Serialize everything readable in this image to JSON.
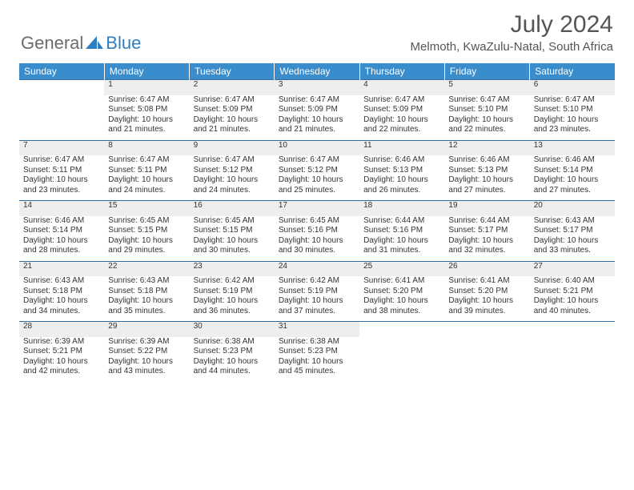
{
  "logo": {
    "text1": "General",
    "text2": "Blue",
    "logo_color": "#2d7fc1",
    "text_color": "#6c6c6c"
  },
  "title": "July 2024",
  "location": "Melmoth, KwaZulu-Natal, South Africa",
  "colors": {
    "header_bg": "#3a8dcc",
    "header_text": "#ffffff",
    "daynum_bg": "#eeeeee",
    "cell_border": "#2d6ea5",
    "body_text": "#333333",
    "title_text": "#555555"
  },
  "typography": {
    "title_fontsize": 30,
    "location_fontsize": 15,
    "header_fontsize": 12,
    "daynum_fontsize": 11,
    "cell_fontsize": 10
  },
  "days_of_week": [
    "Sunday",
    "Monday",
    "Tuesday",
    "Wednesday",
    "Thursday",
    "Friday",
    "Saturday"
  ],
  "weeks": [
    [
      null,
      {
        "n": "1",
        "sr": "6:47 AM",
        "ss": "5:08 PM",
        "dl": "10 hours and 21 minutes."
      },
      {
        "n": "2",
        "sr": "6:47 AM",
        "ss": "5:09 PM",
        "dl": "10 hours and 21 minutes."
      },
      {
        "n": "3",
        "sr": "6:47 AM",
        "ss": "5:09 PM",
        "dl": "10 hours and 21 minutes."
      },
      {
        "n": "4",
        "sr": "6:47 AM",
        "ss": "5:09 PM",
        "dl": "10 hours and 22 minutes."
      },
      {
        "n": "5",
        "sr": "6:47 AM",
        "ss": "5:10 PM",
        "dl": "10 hours and 22 minutes."
      },
      {
        "n": "6",
        "sr": "6:47 AM",
        "ss": "5:10 PM",
        "dl": "10 hours and 23 minutes."
      }
    ],
    [
      {
        "n": "7",
        "sr": "6:47 AM",
        "ss": "5:11 PM",
        "dl": "10 hours and 23 minutes."
      },
      {
        "n": "8",
        "sr": "6:47 AM",
        "ss": "5:11 PM",
        "dl": "10 hours and 24 minutes."
      },
      {
        "n": "9",
        "sr": "6:47 AM",
        "ss": "5:12 PM",
        "dl": "10 hours and 24 minutes."
      },
      {
        "n": "10",
        "sr": "6:47 AM",
        "ss": "5:12 PM",
        "dl": "10 hours and 25 minutes."
      },
      {
        "n": "11",
        "sr": "6:46 AM",
        "ss": "5:13 PM",
        "dl": "10 hours and 26 minutes."
      },
      {
        "n": "12",
        "sr": "6:46 AM",
        "ss": "5:13 PM",
        "dl": "10 hours and 27 minutes."
      },
      {
        "n": "13",
        "sr": "6:46 AM",
        "ss": "5:14 PM",
        "dl": "10 hours and 27 minutes."
      }
    ],
    [
      {
        "n": "14",
        "sr": "6:46 AM",
        "ss": "5:14 PM",
        "dl": "10 hours and 28 minutes."
      },
      {
        "n": "15",
        "sr": "6:45 AM",
        "ss": "5:15 PM",
        "dl": "10 hours and 29 minutes."
      },
      {
        "n": "16",
        "sr": "6:45 AM",
        "ss": "5:15 PM",
        "dl": "10 hours and 30 minutes."
      },
      {
        "n": "17",
        "sr": "6:45 AM",
        "ss": "5:16 PM",
        "dl": "10 hours and 30 minutes."
      },
      {
        "n": "18",
        "sr": "6:44 AM",
        "ss": "5:16 PM",
        "dl": "10 hours and 31 minutes."
      },
      {
        "n": "19",
        "sr": "6:44 AM",
        "ss": "5:17 PM",
        "dl": "10 hours and 32 minutes."
      },
      {
        "n": "20",
        "sr": "6:43 AM",
        "ss": "5:17 PM",
        "dl": "10 hours and 33 minutes."
      }
    ],
    [
      {
        "n": "21",
        "sr": "6:43 AM",
        "ss": "5:18 PM",
        "dl": "10 hours and 34 minutes."
      },
      {
        "n": "22",
        "sr": "6:43 AM",
        "ss": "5:18 PM",
        "dl": "10 hours and 35 minutes."
      },
      {
        "n": "23",
        "sr": "6:42 AM",
        "ss": "5:19 PM",
        "dl": "10 hours and 36 minutes."
      },
      {
        "n": "24",
        "sr": "6:42 AM",
        "ss": "5:19 PM",
        "dl": "10 hours and 37 minutes."
      },
      {
        "n": "25",
        "sr": "6:41 AM",
        "ss": "5:20 PM",
        "dl": "10 hours and 38 minutes."
      },
      {
        "n": "26",
        "sr": "6:41 AM",
        "ss": "5:20 PM",
        "dl": "10 hours and 39 minutes."
      },
      {
        "n": "27",
        "sr": "6:40 AM",
        "ss": "5:21 PM",
        "dl": "10 hours and 40 minutes."
      }
    ],
    [
      {
        "n": "28",
        "sr": "6:39 AM",
        "ss": "5:21 PM",
        "dl": "10 hours and 42 minutes."
      },
      {
        "n": "29",
        "sr": "6:39 AM",
        "ss": "5:22 PM",
        "dl": "10 hours and 43 minutes."
      },
      {
        "n": "30",
        "sr": "6:38 AM",
        "ss": "5:23 PM",
        "dl": "10 hours and 44 minutes."
      },
      {
        "n": "31",
        "sr": "6:38 AM",
        "ss": "5:23 PM",
        "dl": "10 hours and 45 minutes."
      },
      null,
      null,
      null
    ]
  ],
  "labels": {
    "sunrise": "Sunrise:",
    "sunset": "Sunset:",
    "daylight": "Daylight:"
  }
}
